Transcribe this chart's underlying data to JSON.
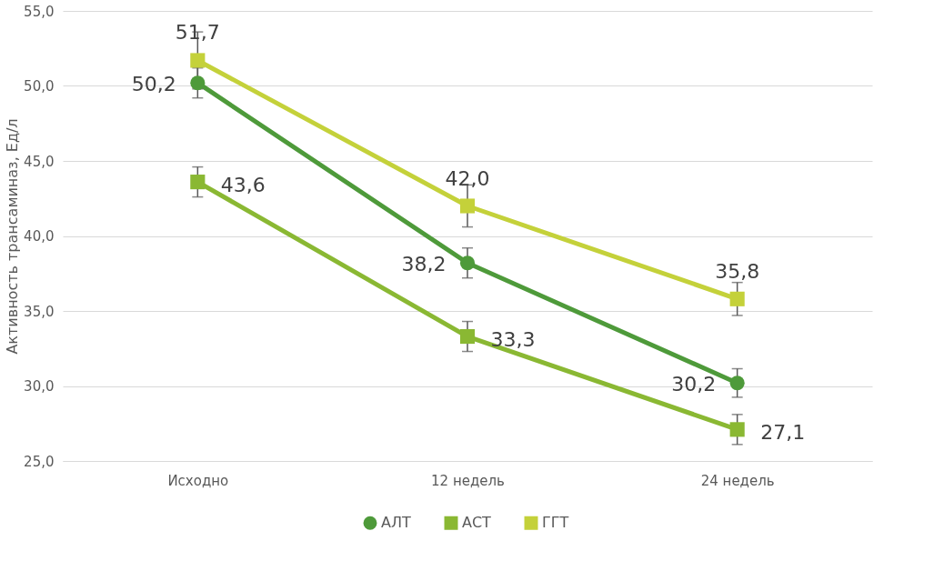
{
  "chart_data": {
    "type": "line",
    "ylabel": "Активность трансаминаз, Ед/л",
    "categories": [
      "Исходно",
      "12 недель",
      "24 недель"
    ],
    "series": [
      {
        "name": "АЛТ",
        "color": "#4e9a3a",
        "marker": "circle",
        "values": [
          50.2,
          38.2,
          30.2
        ],
        "errors": [
          1.0,
          1.0,
          0.95
        ],
        "value_labels": [
          "50,2",
          "38,2",
          "30,2"
        ]
      },
      {
        "name": "АСТ",
        "color": "#8ab833",
        "marker": "square",
        "values": [
          43.6,
          33.3,
          27.1
        ],
        "errors": [
          1.0,
          1.0,
          1.0
        ],
        "value_labels": [
          "43,6",
          "33,3",
          "27,1"
        ]
      },
      {
        "name": "ГГТ",
        "color": "#c4d13a",
        "marker": "square",
        "values": [
          51.7,
          42.0,
          35.8
        ],
        "errors": [
          1.9,
          1.4,
          1.1
        ],
        "value_labels": [
          "51,7",
          "42,0",
          "35,8"
        ]
      }
    ],
    "ylim": [
      25,
      55
    ],
    "yticks": [
      {
        "value": 25,
        "label": "25,0"
      },
      {
        "value": 30,
        "label": "30,0"
      },
      {
        "value": 35,
        "label": "35,0"
      },
      {
        "value": 40,
        "label": "40,0"
      },
      {
        "value": 45,
        "label": "45,0"
      },
      {
        "value": 50,
        "label": "50,0"
      },
      {
        "value": 55,
        "label": "55,0"
      }
    ],
    "grid": "y",
    "legend": "bottom",
    "line_style": "solid"
  }
}
